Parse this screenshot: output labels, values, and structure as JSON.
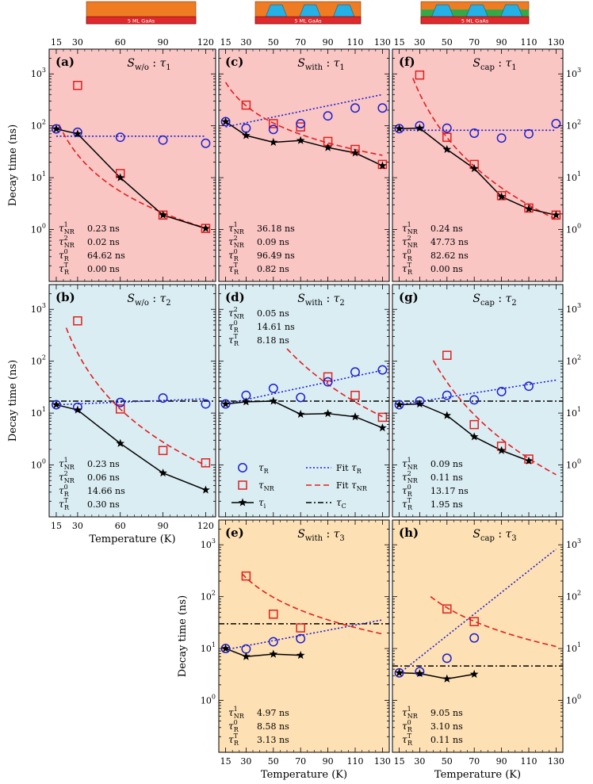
{
  "colors": {
    "panel_pink": "#f9c6c4",
    "panel_blue": "#daedf3",
    "panel_orange": "#fde0b3",
    "tau_r": "#1f1fd0",
    "tau_nr": "#e0201e",
    "tau_i": "#000000",
    "substrate": "#e0282d",
    "cap": "#ef7c22",
    "qd": "#25b0e6",
    "wetting": "#37a847"
  },
  "schematics": [
    {
      "name": "w/o",
      "label": "5 ML GaAs",
      "has_qd": false,
      "has_wetting": false
    },
    {
      "name": "with",
      "label": "5 ML GaAs",
      "has_qd": true,
      "has_wetting": false
    },
    {
      "name": "cap",
      "label": "5 ML GaAs",
      "has_qd": true,
      "has_wetting": true
    }
  ],
  "ylabel_left": "Decay time (ns)",
  "xlabel": "Temperature (K)",
  "legend": {
    "tau_r": "τR",
    "tau_nr": "τNR",
    "tau_i": "τi",
    "fit_r": "Fit τR",
    "fit_nr": "Fit τNR",
    "tau_c": "τC"
  },
  "chart_data": [
    {
      "id": "a",
      "type": "scatter",
      "label": "(a)",
      "sample": "w/o",
      "tau": "1",
      "xticks": [
        15,
        30,
        60,
        90,
        120
      ],
      "xlim": [
        10,
        127
      ],
      "ylim": [
        0.1,
        3000
      ],
      "yscale": "log",
      "tau_r": [
        [
          15,
          87
        ],
        [
          30,
          75
        ],
        [
          60,
          60
        ],
        [
          90,
          53
        ],
        [
          120,
          46
        ]
      ],
      "tau_nr": [
        [
          30,
          600
        ],
        [
          60,
          12
        ],
        [
          90,
          1.9
        ],
        [
          120,
          1.05
        ]
      ],
      "tau_i": [
        [
          15,
          87
        ],
        [
          30,
          70
        ],
        [
          60,
          10
        ],
        [
          90,
          1.9
        ],
        [
          120,
          1.05
        ]
      ],
      "fit_r": {
        "kind": "const",
        "value": 63,
        "xmin": 15,
        "xmax": 120
      },
      "fit_nr": {
        "kind": "power",
        "A": 82000,
        "n": 2.35,
        "xmin": 17,
        "xmax": 122
      },
      "tau_c": null,
      "annotations": [
        {
          "sym": "τ",
          "sup": "1",
          "sub": "NR",
          "value": "0.23 ns"
        },
        {
          "sym": "τ",
          "sup": "2",
          "sub": "NR",
          "value": "0.02 ns"
        },
        {
          "sym": "τ",
          "sup": "0",
          "sub": "R",
          "value": "64.62 ns"
        },
        {
          "sym": "τ",
          "sup": "T",
          "sub": "R",
          "value": "0.00 ns"
        }
      ]
    },
    {
      "id": "c",
      "type": "scatter",
      "label": "(c)",
      "sample": "with",
      "tau": "1",
      "xticks": [
        15,
        30,
        50,
        70,
        90,
        110,
        130
      ],
      "xlim": [
        10,
        135
      ],
      "ylim": [
        0.1,
        3000
      ],
      "yscale": "log",
      "tau_r": [
        [
          15,
          120
        ],
        [
          30,
          90
        ],
        [
          50,
          85
        ],
        [
          70,
          110
        ],
        [
          90,
          155
        ],
        [
          110,
          220
        ],
        [
          130,
          220
        ]
      ],
      "tau_nr": [
        [
          30,
          250
        ],
        [
          50,
          110
        ],
        [
          70,
          95
        ],
        [
          90,
          50
        ],
        [
          110,
          35
        ],
        [
          130,
          18
        ]
      ],
      "tau_i": [
        [
          15,
          120
        ],
        [
          30,
          65
        ],
        [
          50,
          48
        ],
        [
          70,
          52
        ],
        [
          90,
          38
        ],
        [
          110,
          30
        ],
        [
          130,
          17
        ]
      ],
      "fit_r": {
        "kind": "exp",
        "A": 95,
        "B": 0.0125,
        "x0": 15,
        "xmin": 15,
        "xmax": 130
      },
      "fit_nr": {
        "kind": "power",
        "A": 40000,
        "n": 1.5,
        "xmin": 15,
        "xmax": 130
      },
      "tau_c": null,
      "annotations": [
        {
          "sym": "τ",
          "sup": "1",
          "sub": "NR",
          "value": "36.18 ns"
        },
        {
          "sym": "τ",
          "sup": "2",
          "sub": "NR",
          "value": "0.09 ns"
        },
        {
          "sym": "τ",
          "sup": "0",
          "sub": "R",
          "value": "96.49 ns"
        },
        {
          "sym": "τ",
          "sup": "T",
          "sub": "R",
          "value": "0.82 ns"
        }
      ]
    },
    {
      "id": "f",
      "type": "scatter",
      "label": "(f)",
      "sample": "cap",
      "tau": "1",
      "xticks": [
        15,
        30,
        50,
        70,
        90,
        110,
        130
      ],
      "xlim": [
        10,
        135
      ],
      "ylim": [
        0.1,
        3000
      ],
      "yscale": "log",
      "tau_r": [
        [
          15,
          88
        ],
        [
          30,
          100
        ],
        [
          50,
          90
        ],
        [
          70,
          72
        ],
        [
          90,
          58
        ],
        [
          110,
          70
        ],
        [
          130,
          110
        ]
      ],
      "tau_nr": [
        [
          30,
          950
        ],
        [
          50,
          60
        ],
        [
          70,
          18
        ],
        [
          90,
          4.5
        ],
        [
          110,
          2.6
        ],
        [
          130,
          1.9
        ]
      ],
      "tau_i": [
        [
          15,
          88
        ],
        [
          30,
          90
        ],
        [
          50,
          35
        ],
        [
          70,
          15
        ],
        [
          90,
          4.3
        ],
        [
          110,
          2.5
        ],
        [
          130,
          1.9
        ]
      ],
      "fit_r": {
        "kind": "const",
        "value": 82,
        "xmin": 15,
        "xmax": 130
      },
      "fit_nr": {
        "kind": "power",
        "A": 170000000,
        "n": 3.8,
        "xmin": 25,
        "xmax": 130
      },
      "tau_c": null,
      "annotations": [
        {
          "sym": "τ",
          "sup": "1",
          "sub": "NR",
          "value": "0.24 ns"
        },
        {
          "sym": "τ",
          "sup": "2",
          "sub": "NR",
          "value": "47.73 ns"
        },
        {
          "sym": "τ",
          "sup": "0",
          "sub": "R",
          "value": "82.62 ns"
        },
        {
          "sym": "τ",
          "sup": "T",
          "sub": "R",
          "value": "0.00 ns"
        }
      ]
    },
    {
      "id": "b",
      "type": "scatter",
      "label": "(b)",
      "sample": "w/o",
      "tau": "2",
      "xticks": [
        15,
        30,
        60,
        90,
        120
      ],
      "xlim": [
        10,
        127
      ],
      "ylim": [
        0.1,
        3000
      ],
      "yscale": "log",
      "tau_r": [
        [
          15,
          14.5
        ],
        [
          30,
          13
        ],
        [
          60,
          16
        ],
        [
          90,
          19.5
        ],
        [
          120,
          15
        ]
      ],
      "tau_nr": [
        [
          30,
          600
        ],
        [
          60,
          12
        ],
        [
          90,
          1.9
        ],
        [
          120,
          1.1
        ]
      ],
      "tau_i": [
        [
          15,
          14.5
        ],
        [
          30,
          11.5
        ],
        [
          60,
          2.6
        ],
        [
          90,
          0.7
        ],
        [
          120,
          0.33
        ]
      ],
      "fit_r": {
        "kind": "exp",
        "A": 14.5,
        "B": 0.0025,
        "x0": 15,
        "xmin": 15,
        "xmax": 120
      },
      "fit_nr": {
        "kind": "power",
        "A": 30000000,
        "n": 3.6,
        "xmin": 22,
        "xmax": 120
      },
      "tau_c": {
        "value": 17
      },
      "annotations": [
        {
          "sym": "τ",
          "sup": "1",
          "sub": "NR",
          "value": "0.23 ns"
        },
        {
          "sym": "τ",
          "sup": "2",
          "sub": "NR",
          "value": "0.06 ns"
        },
        {
          "sym": "τ",
          "sup": "0",
          "sub": "R",
          "value": "14.66 ns"
        },
        {
          "sym": "τ",
          "sup": "T",
          "sub": "R",
          "value": "0.30 ns"
        }
      ]
    },
    {
      "id": "d",
      "type": "scatter",
      "label": "(d)",
      "sample": "with",
      "tau": "2",
      "xticks": [
        15,
        30,
        50,
        70,
        90,
        110,
        130
      ],
      "xlim": [
        10,
        135
      ],
      "ylim": [
        0.1,
        3000
      ],
      "yscale": "log",
      "tau_r": [
        [
          15,
          15
        ],
        [
          30,
          22
        ],
        [
          50,
          30
        ],
        [
          70,
          20
        ],
        [
          90,
          40
        ],
        [
          110,
          62
        ],
        [
          130,
          68
        ]
      ],
      "tau_nr": [
        [
          90,
          50
        ],
        [
          110,
          22
        ],
        [
          130,
          8.3
        ]
      ],
      "tau_i": [
        [
          15,
          15
        ],
        [
          30,
          16.5
        ],
        [
          50,
          17
        ],
        [
          70,
          9.5
        ],
        [
          90,
          9.8
        ],
        [
          110,
          8.5
        ],
        [
          130,
          5.2
        ]
      ],
      "fit_r": {
        "kind": "exp",
        "A": 15,
        "B": 0.013,
        "x0": 15,
        "xmin": 15,
        "xmax": 130
      },
      "fit_nr": {
        "kind": "power",
        "A": 1500000000,
        "n": 3.9,
        "xmin": 60,
        "xmax": 130
      },
      "tau_c": {
        "value": 17
      },
      "annotations": [
        {
          "sym": "τ",
          "sup": "2",
          "sub": "NR",
          "value": "0.05 ns"
        },
        {
          "sym": "τ",
          "sup": "0",
          "sub": "R",
          "value": "14.61 ns"
        },
        {
          "sym": "τ",
          "sup": "T",
          "sub": "R",
          "value": "8.18 ns"
        }
      ]
    },
    {
      "id": "g",
      "type": "scatter",
      "label": "(g)",
      "sample": "cap",
      "tau": "2",
      "xticks": [
        15,
        30,
        50,
        70,
        90,
        110,
        130
      ],
      "xlim": [
        10,
        135
      ],
      "ylim": [
        0.1,
        3000
      ],
      "yscale": "log",
      "tau_r": [
        [
          15,
          14.5
        ],
        [
          30,
          17
        ],
        [
          50,
          22
        ],
        [
          70,
          18
        ],
        [
          90,
          26
        ],
        [
          110,
          33
        ]
      ],
      "tau_nr": [
        [
          50,
          130
        ],
        [
          70,
          6
        ],
        [
          90,
          2.3
        ],
        [
          110,
          1.3
        ]
      ],
      "tau_i": [
        [
          15,
          14.5
        ],
        [
          30,
          15
        ],
        [
          50,
          9
        ],
        [
          70,
          3.5
        ],
        [
          90,
          1.9
        ],
        [
          110,
          1.2
        ]
      ],
      "fit_r": {
        "kind": "exp",
        "A": 14.5,
        "B": 0.0095,
        "x0": 15,
        "xmin": 15,
        "xmax": 130
      },
      "fit_nr": {
        "kind": "power",
        "A": 800000000,
        "n": 4.3,
        "xmin": 40,
        "xmax": 130
      },
      "tau_c": {
        "value": 17
      },
      "annotations": [
        {
          "sym": "τ",
          "sup": "1",
          "sub": "NR",
          "value": "0.09 ns"
        },
        {
          "sym": "τ",
          "sup": "2",
          "sub": "NR",
          "value": "0.11 ns"
        },
        {
          "sym": "τ",
          "sup": "0",
          "sub": "R",
          "value": "13.17 ns"
        },
        {
          "sym": "τ",
          "sup": "T",
          "sub": "R",
          "value": "1.95 ns"
        }
      ]
    },
    {
      "id": "e",
      "type": "scatter",
      "label": "(e)",
      "sample": "with",
      "tau": "3",
      "xticks": [
        15,
        30,
        50,
        70,
        90,
        110,
        130
      ],
      "xlim": [
        10,
        135
      ],
      "ylim": [
        0.1,
        3000
      ],
      "yscale": "log",
      "tau_r": [
        [
          15,
          10
        ],
        [
          30,
          9.8
        ],
        [
          50,
          13.5
        ],
        [
          70,
          15.5
        ]
      ],
      "tau_nr": [
        [
          30,
          250
        ],
        [
          50,
          46
        ],
        [
          70,
          25
        ]
      ],
      "tau_i": [
        [
          15,
          10
        ],
        [
          30,
          7
        ],
        [
          50,
          7.8
        ],
        [
          70,
          7.4
        ]
      ],
      "fit_r": {
        "kind": "exp",
        "A": 9.5,
        "B": 0.0115,
        "x0": 15,
        "xmin": 15,
        "xmax": 130
      },
      "fit_nr": {
        "kind": "power",
        "A": 75000,
        "n": 1.7,
        "xmin": 27,
        "xmax": 130
      },
      "tau_c": {
        "value": 30
      },
      "annotations": [
        {
          "sym": "τ",
          "sup": "1",
          "sub": "NR",
          "value": "4.97 ns"
        },
        {
          "sym": "τ",
          "sup": "0",
          "sub": "R",
          "value": "8.58 ns"
        },
        {
          "sym": "τ",
          "sup": "T",
          "sub": "R",
          "value": "3.13 ns"
        }
      ]
    },
    {
      "id": "h",
      "type": "scatter",
      "label": "(h)",
      "sample": "cap",
      "tau": "3",
      "xticks": [
        15,
        30,
        50,
        70,
        90,
        110,
        130
      ],
      "xlim": [
        10,
        135
      ],
      "ylim": [
        0.1,
        3000
      ],
      "yscale": "log",
      "tau_r": [
        [
          15,
          3.4
        ],
        [
          30,
          3.6
        ],
        [
          50,
          6.5
        ],
        [
          70,
          16
        ]
      ],
      "tau_nr": [
        [
          50,
          58
        ],
        [
          70,
          33
        ]
      ],
      "tau_i": [
        [
          15,
          3.4
        ],
        [
          30,
          3.3
        ],
        [
          50,
          2.6
        ],
        [
          70,
          3.2
        ]
      ],
      "fit_r": {
        "kind": "exp",
        "A": 3.3,
        "B": 0.048,
        "x0": 15,
        "xmin": 15,
        "xmax": 130
      },
      "fit_nr": {
        "kind": "power",
        "A": 70000,
        "n": 1.8,
        "xmin": 38,
        "xmax": 130
      },
      "tau_c": {
        "value": 4.6
      },
      "annotations": [
        {
          "sym": "τ",
          "sup": "1",
          "sub": "NR",
          "value": "9.05 ns"
        },
        {
          "sym": "τ",
          "sup": "0",
          "sub": "R",
          "value": "3.10 ns"
        },
        {
          "sym": "τ",
          "sup": "T",
          "sub": "R",
          "value": "0.11 ns"
        }
      ]
    }
  ]
}
